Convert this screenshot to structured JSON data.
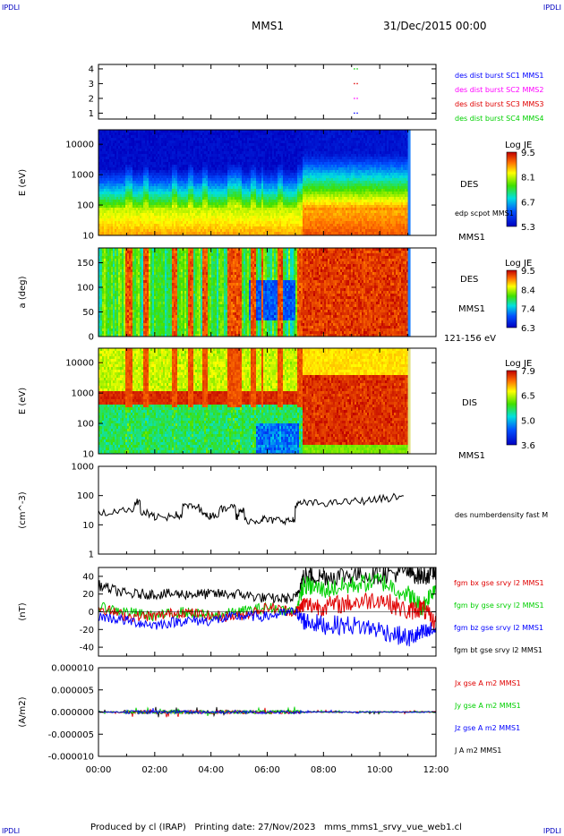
{
  "corner_tl": "IPDLI",
  "corner_tr": "IPDLI",
  "corner_bl": "IPDLI",
  "corner_br": "IPDLI",
  "title": "MMS1",
  "datetime": "31/Dec/2015 00:00",
  "footer": "Produced by cl (IRAP)   Printing date: 27/Nov/2023   mms_mms1_srvy_vue_web1.cl",
  "colors": {
    "blue": "#0000ff",
    "red": "#e00000",
    "green": "#00d000",
    "black": "#000000",
    "magenta": "#ff00ff",
    "cyan": "#00c0ff",
    "header_blue": "#0000c0"
  },
  "chart_data": [
    {
      "type": "scatter",
      "id": "burst",
      "ytick_labels": [
        "1",
        "2",
        "3",
        "4"
      ],
      "ylim": [
        0.6,
        4.3
      ],
      "legend": [
        {
          "name": "des dist burst SC1 MMS1",
          "color": "#0000ff"
        },
        {
          "name": "des dist burst SC2 MMS2",
          "color": "#ff00ff"
        },
        {
          "name": "des dist burst SC3 MMS3",
          "color": "#e00000"
        },
        {
          "name": "des dist burst SC4 MMS4",
          "color": "#00d000"
        }
      ],
      "markers": [
        {
          "hour": 9.1,
          "sc": 1
        },
        {
          "hour": 9.2,
          "sc": 1
        },
        {
          "hour": 9.1,
          "sc": 2
        },
        {
          "hour": 9.2,
          "sc": 2
        },
        {
          "hour": 9.1,
          "sc": 3
        },
        {
          "hour": 9.2,
          "sc": 3
        },
        {
          "hour": 9.1,
          "sc": 4
        },
        {
          "hour": 9.2,
          "sc": 4
        }
      ]
    },
    {
      "type": "heatmap",
      "id": "des_energy",
      "ylabel": "E (eV)",
      "ytick_labels": [
        "10",
        "100",
        "1000",
        "10000"
      ],
      "yscale": "log",
      "ylim": [
        10,
        30000
      ],
      "species": "DES",
      "extra_label": "edp scpot MMS1",
      "sc_label": "MMS1",
      "colorbar_title": "Log JE",
      "colorbar_ticks": [
        "9.5",
        "8.1",
        "6.7",
        "5.3"
      ],
      "data_end_hour": 11.0
    },
    {
      "type": "heatmap",
      "id": "des_pitch",
      "ylabel": "a (deg)",
      "ytick_labels": [
        "0",
        "50",
        "100",
        "150"
      ],
      "ylim": [
        0,
        180
      ],
      "species": "DES",
      "sc_label": "MMS1",
      "energy_range_label": "121-156 eV",
      "colorbar_title": "Log JE",
      "colorbar_ticks": [
        "9.5",
        "8.4",
        "7.4",
        "6.3"
      ],
      "data_end_hour": 11.0
    },
    {
      "type": "heatmap",
      "id": "dis_energy",
      "ylabel": "E (eV)",
      "ytick_labels": [
        "10",
        "100",
        "1000",
        "10000"
      ],
      "yscale": "log",
      "ylim": [
        10,
        30000
      ],
      "species": "DIS",
      "sc_label": "MMS1",
      "colorbar_title": "Log JE",
      "colorbar_ticks": [
        "7.9",
        "6.5",
        "5.0",
        "3.6"
      ],
      "data_end_hour": 11.0
    },
    {
      "type": "line",
      "id": "density",
      "ylabel": "(cm^-3)",
      "ytick_labels": [
        "1",
        "10",
        "100",
        "1000"
      ],
      "yscale": "log",
      "ylim": [
        1,
        1000
      ],
      "series": [
        {
          "name": "des numberdensity fast M",
          "color": "#000000",
          "x": [
            0.0,
            0.5,
            1.0,
            1.3,
            1.5,
            1.8,
            2.0,
            2.5,
            2.8,
            3.0,
            3.3,
            3.6,
            3.8,
            4.0,
            4.3,
            4.6,
            4.9,
            5.0,
            5.2,
            5.5,
            5.8,
            6.0,
            6.3,
            6.6,
            6.9,
            7.0,
            7.2,
            7.5,
            8.0,
            8.5,
            9.0,
            9.5,
            10.0,
            10.5,
            10.9
          ],
          "y": [
            25,
            30,
            35,
            60,
            25,
            20,
            18,
            22,
            20,
            45,
            40,
            30,
            20,
            22,
            35,
            50,
            18,
            30,
            14,
            14,
            16,
            14,
            15,
            14,
            14,
            50,
            55,
            55,
            55,
            60,
            65,
            70,
            80,
            90,
            100
          ]
        }
      ]
    },
    {
      "type": "line",
      "id": "fgm",
      "ylabel": "(nT)",
      "ytick_labels": [
        "-40",
        "-20",
        "0",
        "20",
        "40"
      ],
      "ylim": [
        -50,
        50
      ],
      "series": [
        {
          "name": "fgm bx gse srvy l2 MMS1",
          "color": "#e00000",
          "x": [
            0,
            1,
            2,
            3,
            4,
            5,
            6,
            7,
            7.3,
            8,
            9,
            10,
            11,
            11.5,
            12
          ],
          "y": [
            5,
            -5,
            -5,
            0,
            -5,
            -5,
            5,
            0,
            8,
            6,
            10,
            15,
            0,
            5,
            -15
          ]
        },
        {
          "name": "fgm by gse srvy l2 MMS1",
          "color": "#00d000",
          "x": [
            0,
            1,
            2,
            3,
            4,
            5,
            6,
            7,
            7.3,
            8,
            9,
            10,
            11,
            11.5,
            12
          ],
          "y": [
            5,
            0,
            -5,
            0,
            -5,
            0,
            5,
            0,
            30,
            25,
            30,
            35,
            20,
            5,
            30
          ]
        },
        {
          "name": "fgm bz gse srvy l2 MMS1",
          "color": "#0000ff",
          "x": [
            0,
            1,
            2,
            3,
            4,
            5,
            6,
            7,
            7.3,
            8,
            9,
            10,
            11,
            11.5,
            12
          ],
          "y": [
            -5,
            -10,
            -15,
            -10,
            -10,
            -5,
            -5,
            0,
            -10,
            -15,
            -15,
            -20,
            -30,
            -25,
            -20
          ]
        },
        {
          "name": "fgm bt gse srvy l2 MMS1",
          "color": "#000000",
          "x": [
            0,
            1,
            2,
            3,
            4,
            5,
            6,
            7,
            7.3,
            8,
            9,
            10,
            11,
            11.5,
            12
          ],
          "y": [
            30,
            20,
            20,
            20,
            20,
            20,
            15,
            15,
            40,
            40,
            42,
            42,
            45,
            40,
            45
          ]
        }
      ]
    },
    {
      "type": "line",
      "id": "current",
      "ylabel": "(A/m2)",
      "ytick_labels": [
        "-0.000010",
        "-0.000005",
        "0.000000",
        "0.000005",
        "0.000010"
      ],
      "ylim": [
        -1e-05,
        1e-05
      ],
      "xtick_labels": [
        "00:00",
        "02:00",
        "04:00",
        "06:00",
        "08:00",
        "10:00",
        "12:00"
      ],
      "xlim_hours": [
        0,
        12
      ],
      "series": [
        {
          "name": "Jx gse A m2 MMS1",
          "color": "#e00000"
        },
        {
          "name": "Jy gse A m2 MMS1",
          "color": "#00d000"
        },
        {
          "name": "Jz gse A m2 MMS1",
          "color": "#0000ff"
        },
        {
          "name": "J A m2 MMS1",
          "color": "#000000"
        }
      ]
    }
  ]
}
